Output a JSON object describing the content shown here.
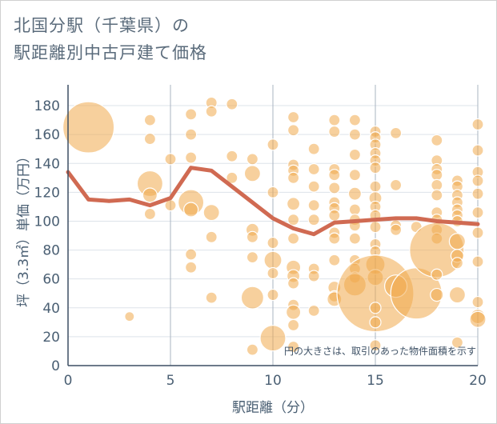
{
  "title_line1": "北国分駅（千葉県）の",
  "title_line2": "駅距離別中古戸建て価格",
  "chart_data": {
    "type": "scatter",
    "xlabel": "駅距離（分）",
    "ylabel": "坪（3.3㎡）単価（万円）",
    "xlim": [
      0,
      20
    ],
    "ylim": [
      0,
      190
    ],
    "xticks": [
      0,
      5,
      10,
      15,
      20
    ],
    "yticks": [
      0,
      20,
      40,
      60,
      80,
      100,
      120,
      140,
      160,
      180
    ],
    "grid": true,
    "note": "円の大きさは、取引のあった物件面積を示す",
    "colors": {
      "bubble": "#f0a94c",
      "line": "#d06a52",
      "grid": "#dde3ea",
      "vgrid": "#a9b4c2"
    },
    "trend_line": {
      "x": [
        0,
        1,
        2,
        3,
        4,
        5,
        6,
        7,
        8,
        9,
        10,
        11,
        12,
        13,
        14,
        15,
        16,
        17,
        18,
        19,
        20
      ],
      "y": [
        134,
        115,
        114,
        115,
        111,
        116,
        137,
        135,
        124,
        113,
        102,
        95,
        91,
        99,
        100,
        101,
        102,
        102,
        100,
        99,
        98
      ]
    },
    "bubbles": [
      {
        "x": 1,
        "y": 165,
        "s": 32
      },
      {
        "x": 3,
        "y": 34,
        "s": 6
      },
      {
        "x": 4,
        "y": 170,
        "s": 7
      },
      {
        "x": 4,
        "y": 157,
        "s": 7
      },
      {
        "x": 4,
        "y": 126,
        "s": 16
      },
      {
        "x": 4,
        "y": 118,
        "s": 9
      },
      {
        "x": 4,
        "y": 105,
        "s": 7
      },
      {
        "x": 5,
        "y": 143,
        "s": 7
      },
      {
        "x": 5,
        "y": 111,
        "s": 7
      },
      {
        "x": 6,
        "y": 174,
        "s": 7
      },
      {
        "x": 6,
        "y": 160,
        "s": 7
      },
      {
        "x": 6,
        "y": 144,
        "s": 7
      },
      {
        "x": 6,
        "y": 113,
        "s": 16
      },
      {
        "x": 6,
        "y": 108,
        "s": 9
      },
      {
        "x": 6,
        "y": 77,
        "s": 7
      },
      {
        "x": 6,
        "y": 68,
        "s": 7
      },
      {
        "x": 7,
        "y": 182,
        "s": 7
      },
      {
        "x": 7,
        "y": 176,
        "s": 7
      },
      {
        "x": 7,
        "y": 106,
        "s": 10
      },
      {
        "x": 7,
        "y": 89,
        "s": 7
      },
      {
        "x": 7,
        "y": 47,
        "s": 7
      },
      {
        "x": 8,
        "y": 181,
        "s": 7
      },
      {
        "x": 8,
        "y": 145,
        "s": 7
      },
      {
        "x": 8,
        "y": 130,
        "s": 7
      },
      {
        "x": 9,
        "y": 143,
        "s": 7
      },
      {
        "x": 9,
        "y": 133,
        "s": 10
      },
      {
        "x": 9,
        "y": 94,
        "s": 8
      },
      {
        "x": 9,
        "y": 89,
        "s": 7
      },
      {
        "x": 9,
        "y": 75,
        "s": 7
      },
      {
        "x": 9,
        "y": 47,
        "s": 14
      },
      {
        "x": 9,
        "y": 11,
        "s": 7
      },
      {
        "x": 10,
        "y": 153,
        "s": 7
      },
      {
        "x": 10,
        "y": 120,
        "s": 7
      },
      {
        "x": 10,
        "y": 85,
        "s": 7
      },
      {
        "x": 10,
        "y": 73,
        "s": 11
      },
      {
        "x": 10,
        "y": 64,
        "s": 7
      },
      {
        "x": 10,
        "y": 49,
        "s": 7
      },
      {
        "x": 10,
        "y": 19,
        "s": 16
      },
      {
        "x": 11,
        "y": 172,
        "s": 7
      },
      {
        "x": 11,
        "y": 163,
        "s": 7
      },
      {
        "x": 11,
        "y": 139,
        "s": 7
      },
      {
        "x": 11,
        "y": 135,
        "s": 7
      },
      {
        "x": 11,
        "y": 130,
        "s": 7
      },
      {
        "x": 11,
        "y": 112,
        "s": 8
      },
      {
        "x": 11,
        "y": 101,
        "s": 7
      },
      {
        "x": 11,
        "y": 88,
        "s": 7
      },
      {
        "x": 11,
        "y": 68,
        "s": 9
      },
      {
        "x": 11,
        "y": 62,
        "s": 8
      },
      {
        "x": 11,
        "y": 57,
        "s": 7
      },
      {
        "x": 11,
        "y": 42,
        "s": 7
      },
      {
        "x": 11,
        "y": 37,
        "s": 9
      },
      {
        "x": 11,
        "y": 28,
        "s": 7
      },
      {
        "x": 11,
        "y": 13,
        "s": 7
      },
      {
        "x": 12,
        "y": 150,
        "s": 7
      },
      {
        "x": 12,
        "y": 136,
        "s": 7
      },
      {
        "x": 12,
        "y": 124,
        "s": 7
      },
      {
        "x": 12,
        "y": 111,
        "s": 7
      },
      {
        "x": 12,
        "y": 101,
        "s": 7
      },
      {
        "x": 12,
        "y": 67,
        "s": 7
      },
      {
        "x": 12,
        "y": 62,
        "s": 7
      },
      {
        "x": 12,
        "y": 38,
        "s": 7
      },
      {
        "x": 13,
        "y": 170,
        "s": 7
      },
      {
        "x": 13,
        "y": 162,
        "s": 7
      },
      {
        "x": 13,
        "y": 136,
        "s": 7
      },
      {
        "x": 13,
        "y": 132,
        "s": 7
      },
      {
        "x": 13,
        "y": 123,
        "s": 7
      },
      {
        "x": 13,
        "y": 113,
        "s": 7
      },
      {
        "x": 13,
        "y": 109,
        "s": 7
      },
      {
        "x": 13,
        "y": 104,
        "s": 7
      },
      {
        "x": 13,
        "y": 92,
        "s": 7
      },
      {
        "x": 13,
        "y": 88,
        "s": 7
      },
      {
        "x": 13,
        "y": 73,
        "s": 7
      },
      {
        "x": 13,
        "y": 54,
        "s": 8
      },
      {
        "x": 13,
        "y": 48,
        "s": 7
      },
      {
        "x": 13,
        "y": 46,
        "s": 9
      },
      {
        "x": 14,
        "y": 170,
        "s": 7
      },
      {
        "x": 14,
        "y": 160,
        "s": 7
      },
      {
        "x": 14,
        "y": 146,
        "s": 7
      },
      {
        "x": 14,
        "y": 132,
        "s": 7
      },
      {
        "x": 14,
        "y": 119,
        "s": 8
      },
      {
        "x": 14,
        "y": 108,
        "s": 7
      },
      {
        "x": 14,
        "y": 101,
        "s": 7
      },
      {
        "x": 14,
        "y": 97,
        "s": 7
      },
      {
        "x": 14,
        "y": 88,
        "s": 7
      },
      {
        "x": 14,
        "y": 73,
        "s": 7
      },
      {
        "x": 14,
        "y": 67,
        "s": 7
      },
      {
        "x": 14,
        "y": 61,
        "s": 7
      },
      {
        "x": 14,
        "y": 56,
        "s": 14
      },
      {
        "x": 15,
        "y": 162,
        "s": 7
      },
      {
        "x": 15,
        "y": 158,
        "s": 7
      },
      {
        "x": 15,
        "y": 153,
        "s": 7
      },
      {
        "x": 15,
        "y": 147,
        "s": 7
      },
      {
        "x": 15,
        "y": 142,
        "s": 7
      },
      {
        "x": 15,
        "y": 137,
        "s": 7
      },
      {
        "x": 15,
        "y": 124,
        "s": 7
      },
      {
        "x": 15,
        "y": 116,
        "s": 8
      },
      {
        "x": 15,
        "y": 110,
        "s": 7
      },
      {
        "x": 15,
        "y": 104,
        "s": 7
      },
      {
        "x": 15,
        "y": 96,
        "s": 7
      },
      {
        "x": 15,
        "y": 84,
        "s": 7
      },
      {
        "x": 15,
        "y": 79,
        "s": 7
      },
      {
        "x": 15,
        "y": 70,
        "s": 12
      },
      {
        "x": 15,
        "y": 61,
        "s": 10
      },
      {
        "x": 15,
        "y": 50,
        "s": 48
      },
      {
        "x": 15,
        "y": 40,
        "s": 7
      },
      {
        "x": 15,
        "y": 30,
        "s": 7
      },
      {
        "x": 15,
        "y": 14,
        "s": 7
      },
      {
        "x": 16,
        "y": 161,
        "s": 7
      },
      {
        "x": 16,
        "y": 125,
        "s": 7
      },
      {
        "x": 16,
        "y": 97,
        "s": 7
      },
      {
        "x": 16,
        "y": 94,
        "s": 7
      },
      {
        "x": 16,
        "y": 55,
        "s": 14
      },
      {
        "x": 17,
        "y": 96,
        "s": 7
      },
      {
        "x": 17,
        "y": 50,
        "s": 32
      },
      {
        "x": 18,
        "y": 156,
        "s": 7
      },
      {
        "x": 18,
        "y": 142,
        "s": 7
      },
      {
        "x": 18,
        "y": 136,
        "s": 7
      },
      {
        "x": 18,
        "y": 132,
        "s": 7
      },
      {
        "x": 18,
        "y": 125,
        "s": 7
      },
      {
        "x": 18,
        "y": 118,
        "s": 7
      },
      {
        "x": 18,
        "y": 106,
        "s": 7
      },
      {
        "x": 18,
        "y": 101,
        "s": 7
      },
      {
        "x": 18,
        "y": 94,
        "s": 7
      },
      {
        "x": 18,
        "y": 88,
        "s": 7
      },
      {
        "x": 18,
        "y": 80,
        "s": 34
      },
      {
        "x": 18,
        "y": 63,
        "s": 7
      },
      {
        "x": 18,
        "y": 49,
        "s": 8
      },
      {
        "x": 19,
        "y": 128,
        "s": 7
      },
      {
        "x": 19,
        "y": 124,
        "s": 7
      },
      {
        "x": 19,
        "y": 118,
        "s": 7
      },
      {
        "x": 19,
        "y": 113,
        "s": 7
      },
      {
        "x": 19,
        "y": 108,
        "s": 7
      },
      {
        "x": 19,
        "y": 104,
        "s": 7
      },
      {
        "x": 19,
        "y": 100,
        "s": 7
      },
      {
        "x": 19,
        "y": 86,
        "s": 10
      },
      {
        "x": 19,
        "y": 76,
        "s": 8
      },
      {
        "x": 19,
        "y": 71,
        "s": 7
      },
      {
        "x": 19,
        "y": 49,
        "s": 10
      },
      {
        "x": 19,
        "y": 16,
        "s": 7
      },
      {
        "x": 20,
        "y": 167,
        "s": 7
      },
      {
        "x": 20,
        "y": 149,
        "s": 7
      },
      {
        "x": 20,
        "y": 134,
        "s": 7
      },
      {
        "x": 20,
        "y": 128,
        "s": 7
      },
      {
        "x": 20,
        "y": 119,
        "s": 7
      },
      {
        "x": 20,
        "y": 106,
        "s": 7
      },
      {
        "x": 20,
        "y": 92,
        "s": 7
      },
      {
        "x": 20,
        "y": 72,
        "s": 7
      },
      {
        "x": 20,
        "y": 44,
        "s": 7
      },
      {
        "x": 20,
        "y": 34,
        "s": 9
      },
      {
        "x": 20,
        "y": 32,
        "s": 10
      }
    ]
  }
}
